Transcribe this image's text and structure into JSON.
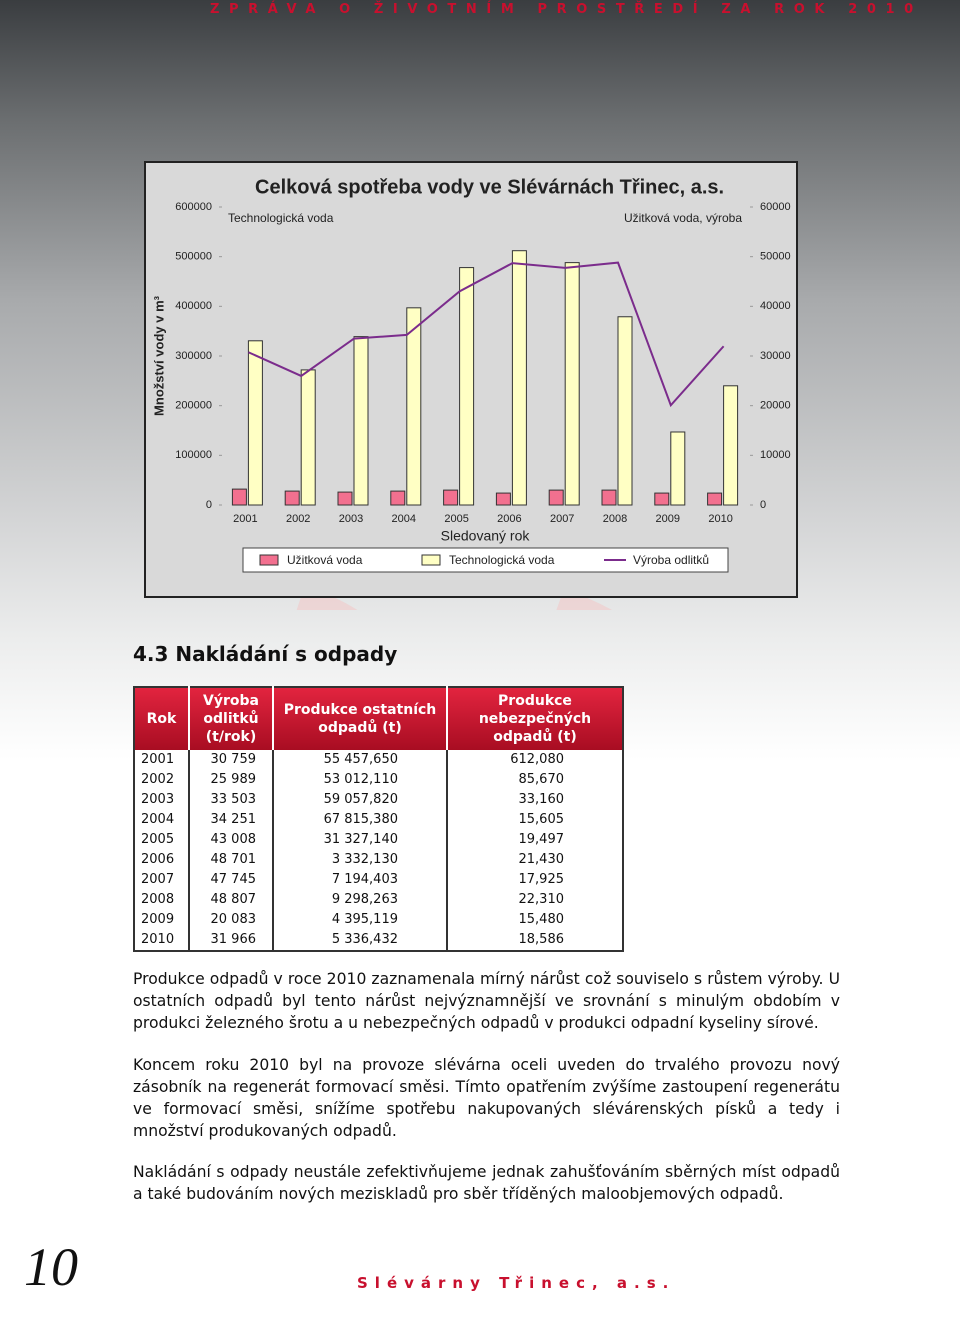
{
  "header": "ZPRÁVA O ŽIVOTNÍM PROSTŘEDÍ ZA ROK 2010",
  "chart_data": {
    "type": "bar",
    "title": "Celková spotřeba vody ve Slévárnách Třinec, a.s.",
    "annotations": [
      "Technologická voda",
      "Užitková voda, výroba"
    ],
    "xlabel": "Sledovaný rok",
    "ylabel": "Množství vody v m³",
    "categories": [
      "2001",
      "2002",
      "2003",
      "2004",
      "2005",
      "2006",
      "2007",
      "2008",
      "2009",
      "2010"
    ],
    "ylim": [
      0,
      600000
    ],
    "yticks": [
      0,
      100000,
      200000,
      300000,
      400000,
      500000,
      600000
    ],
    "y2lim": [
      0,
      60000
    ],
    "y2ticks": [
      0,
      10000,
      20000,
      30000,
      40000,
      50000,
      60000
    ],
    "grid": false,
    "legend": "bottom",
    "series": [
      {
        "name": "Užitková voda",
        "type": "bar",
        "axis": "y2",
        "color": "#f2708f",
        "values": [
          3200,
          2800,
          2600,
          2800,
          3000,
          2400,
          3000,
          3000,
          2400,
          2400
        ]
      },
      {
        "name": "Technologická voda",
        "type": "bar",
        "color": "#ffffc4",
        "values": [
          330600,
          272000,
          339000,
          397000,
          478000,
          512000,
          488000,
          379000,
          147000,
          240000
        ]
      },
      {
        "name": "Výroba odlitků",
        "type": "line",
        "axis": "y2",
        "color": "#7b2c8c",
        "values": [
          30759,
          25989,
          33503,
          34251,
          43008,
          48701,
          47745,
          48807,
          20083,
          31966
        ]
      }
    ]
  },
  "section_title": "4.3 Nakládání s odpady",
  "table": {
    "header": [
      "Rok",
      "Výroba odlitků (t/rok)",
      "Produkce ostatních odpadů (t)",
      "Produkce nebezpečných odpadů (t)"
    ],
    "rows": [
      [
        "2001",
        "30 759",
        "55 457,650",
        "612,080"
      ],
      [
        "2002",
        "25 989",
        "53 012,110",
        "85,670"
      ],
      [
        "2003",
        "33 503",
        "59 057,820",
        "33,160"
      ],
      [
        "2004",
        "34 251",
        "67 815,380",
        "15,605"
      ],
      [
        "2005",
        "43 008",
        "31 327,140",
        "19,497"
      ],
      [
        "2006",
        "48 701",
        "3 332,130",
        "21,430"
      ],
      [
        "2007",
        "47 745",
        "7 194,403",
        "17,925"
      ],
      [
        "2008",
        "48 807",
        "9 298,263",
        "22,310"
      ],
      [
        "2009",
        "20 083",
        "4 395,119",
        "15,480"
      ],
      [
        "2010",
        "31 966",
        "5 336,432",
        "18,586"
      ]
    ]
  },
  "paragraphs": [
    "Produkce odpadů v roce 2010 zaznamenala mírný nárůst což souviselo s růstem výroby. U ostatních odpadů byl tento nárůst nejvýznamnější ve srovnání s minulým obdobím v produkci železného šrotu a u nebezpečných odpadů v produkci odpadní kyseliny sírové.",
    "Koncem roku 2010 byl na provoze slévárna oceli uveden do trvalého provozu nový zásobník na regenerát formovací směsi. Tímto opatřením zvýšíme zastoupení regenerátu ve formovací směsi, snížíme spotřebu nakupovaných slévárenských písků a tedy i množství produkovaných odpadů.",
    "Nakládání s odpady neustále zefektivňujeme jednak zahušťováním sběrných míst odpadů a také budováním nových meziskladů pro sběr tříděných maloobjemových odpadů."
  ],
  "page_number": "10",
  "footer": "Slévárny Třinec, a.s."
}
